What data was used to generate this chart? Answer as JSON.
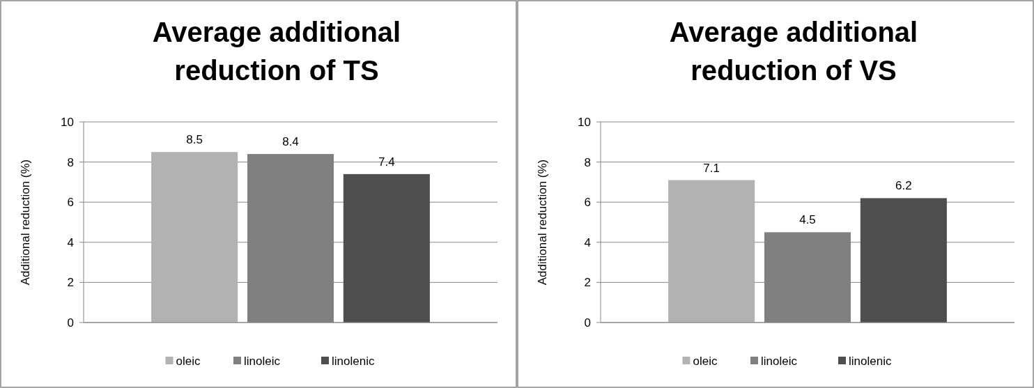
{
  "chart_data": [
    {
      "type": "bar",
      "title": "Average additional reduction of TS",
      "ylabel": "Additional reduction (%)",
      "categories": [
        null
      ],
      "ylim": [
        0,
        10
      ],
      "yticks": [
        0,
        2,
        4,
        6,
        8,
        10
      ],
      "grid": "y",
      "legend": "bottom",
      "data_labels": true,
      "series": [
        {
          "name": "oleic",
          "color": "#b2b2b2",
          "values": [
            8.5
          ]
        },
        {
          "name": "linoleic",
          "color": "#808080",
          "values": [
            8.4
          ]
        },
        {
          "name": "linolenic",
          "color": "#4f4f4f",
          "values": [
            7.4
          ]
        }
      ]
    },
    {
      "type": "bar",
      "title": "Average additional reduction of VS",
      "ylabel": "Additional reduction (%)",
      "categories": [
        null
      ],
      "ylim": [
        0,
        10
      ],
      "yticks": [
        0,
        2,
        4,
        6,
        8,
        10
      ],
      "grid": "y",
      "legend": "bottom",
      "data_labels": true,
      "series": [
        {
          "name": "oleic",
          "color": "#b2b2b2",
          "values": [
            7.1
          ]
        },
        {
          "name": "linoleic",
          "color": "#808080",
          "values": [
            4.5
          ]
        },
        {
          "name": "linolenic",
          "color": "#4f4f4f",
          "values": [
            6.2
          ]
        }
      ]
    }
  ]
}
